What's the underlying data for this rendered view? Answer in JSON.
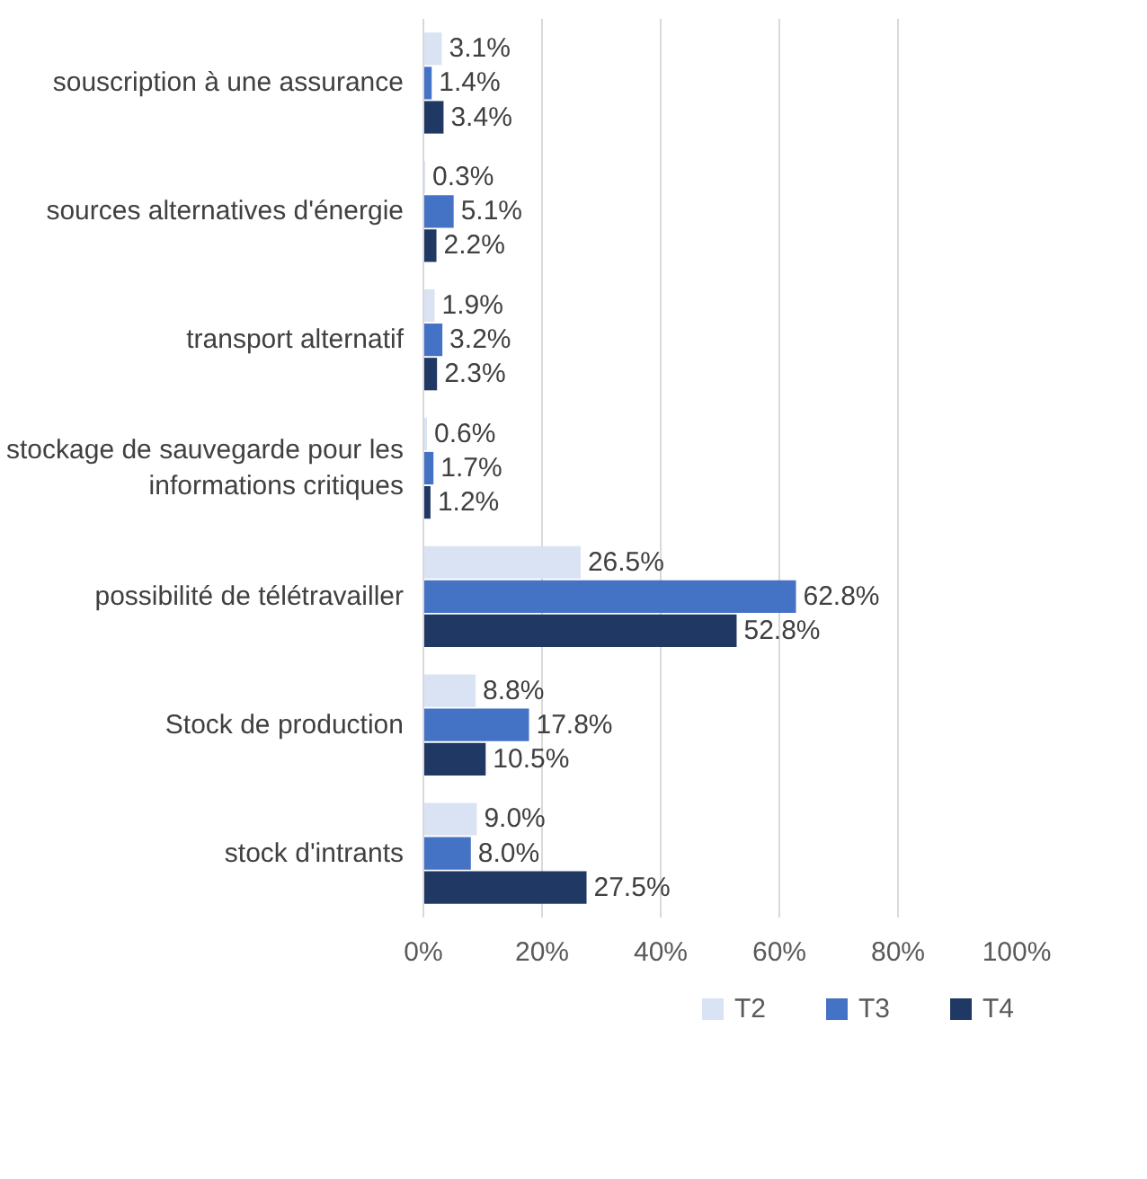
{
  "chart_data": {
    "type": "bar",
    "orientation": "horizontal",
    "categories": [
      "souscription à une assurance",
      "sources alternatives d'énergie",
      "transport alternatif",
      "stockage de sauvegarde pour les informations critiques",
      "possibilité de télétravailler",
      "Stock de production",
      "stock d'intrants"
    ],
    "series": [
      {
        "name": "T2",
        "color": "#dae3f3",
        "values": [
          3.1,
          0.3,
          1.9,
          0.6,
          26.5,
          8.8,
          9.0
        ],
        "value_labels": [
          "3.1%",
          "0.3%",
          "1.9%",
          "0.6%",
          "26.5%",
          "8.8%",
          "9.0%"
        ]
      },
      {
        "name": "T3",
        "color": "#4472c4",
        "values": [
          1.4,
          5.1,
          3.2,
          1.7,
          62.8,
          17.8,
          8.0
        ],
        "value_labels": [
          "1.4%",
          "5.1%",
          "3.2%",
          "1.7%",
          "62.8%",
          "17.8%",
          "8.0%"
        ]
      },
      {
        "name": "T4",
        "color": "#203864",
        "values": [
          3.4,
          2.2,
          2.3,
          1.2,
          52.8,
          10.5,
          27.5
        ],
        "value_labels": [
          "3.4%",
          "2.2%",
          "2.3%",
          "1.2%",
          "52.8%",
          "10.5%",
          "27.5%"
        ]
      }
    ],
    "xlim": [
      0,
      100
    ],
    "xticks": [
      {
        "value": 0,
        "label": "0%"
      },
      {
        "value": 20,
        "label": "20%"
      },
      {
        "value": 40,
        "label": "40%"
      },
      {
        "value": 60,
        "label": "60%"
      },
      {
        "value": 80,
        "label": "80%"
      },
      {
        "value": 100,
        "label": "100%"
      }
    ],
    "grid": "x",
    "legend": "bottom"
  }
}
